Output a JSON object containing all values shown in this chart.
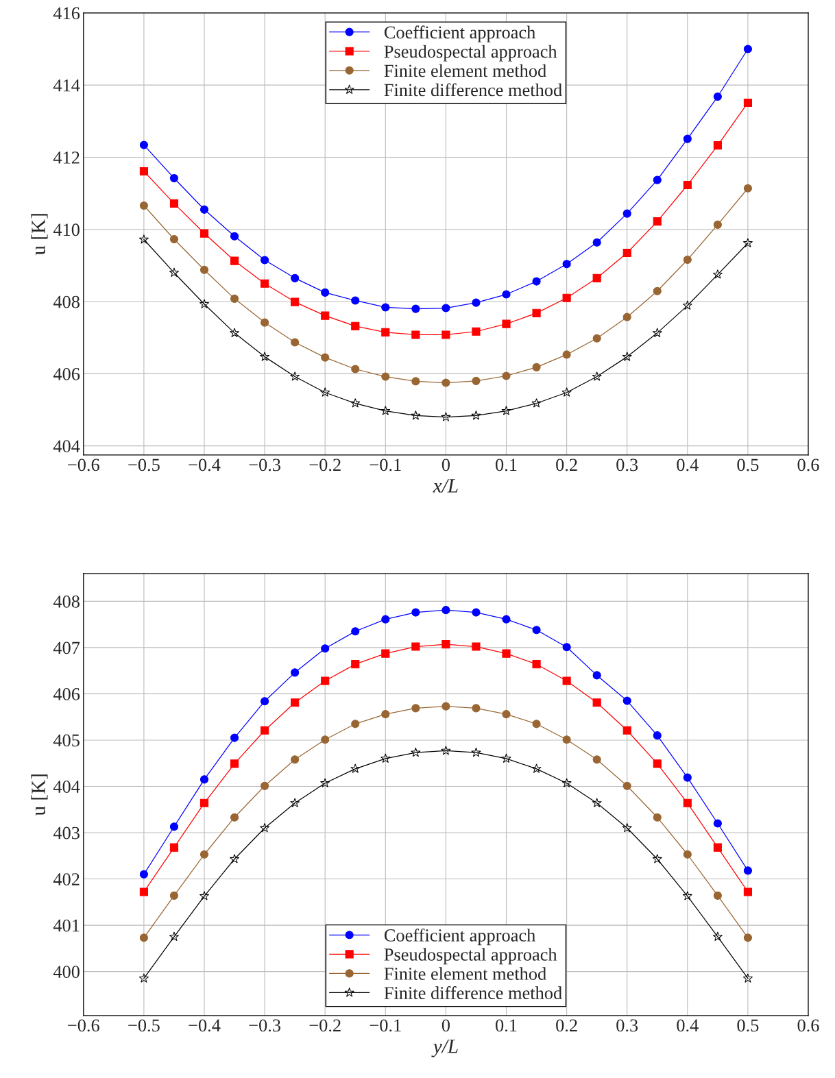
{
  "chart_data": [
    {
      "type": "line",
      "xlabel": "x/L",
      "ylabel": "u [K]",
      "grid": true,
      "legend": "top",
      "x": [
        -0.5,
        -0.45,
        -0.4,
        -0.35,
        -0.3,
        -0.25,
        -0.2,
        -0.15,
        -0.1,
        -0.05,
        0,
        0.05,
        0.1,
        0.15,
        0.2,
        0.25,
        0.3,
        0.35,
        0.4,
        0.45,
        0.5
      ],
      "xlim": [
        -0.6,
        0.6
      ],
      "xticks": [
        {
          "value": -0.6,
          "label": "−0.6"
        },
        {
          "value": -0.5,
          "label": "−0.5"
        },
        {
          "value": -0.4,
          "label": "−0.4"
        },
        {
          "value": -0.3,
          "label": "−0.3"
        },
        {
          "value": -0.2,
          "label": "−0.2"
        },
        {
          "value": -0.1,
          "label": "−0.1"
        },
        0,
        0.1,
        0.2,
        0.3,
        0.4,
        0.5,
        0.6
      ],
      "ylim": [
        403.75,
        416
      ],
      "yticks": [
        404,
        406,
        408,
        410,
        412,
        414,
        416
      ],
      "series": [
        {
          "name": "Coefficient approach",
          "color": "#0000ff",
          "marker": "circle",
          "values": [
            412.34,
            411.42,
            410.55,
            409.81,
            409.15,
            408.65,
            408.25,
            408.03,
            407.84,
            407.8,
            407.82,
            407.97,
            408.2,
            408.56,
            409.04,
            409.64,
            410.44,
            411.37,
            412.51,
            413.68,
            415.0
          ]
        },
        {
          "name": "Pseudospectal approach",
          "color": "#ff0000",
          "marker": "square",
          "values": [
            411.61,
            410.72,
            409.89,
            409.13,
            408.5,
            407.99,
            407.61,
            407.32,
            407.15,
            407.08,
            407.08,
            407.17,
            407.38,
            407.68,
            408.1,
            408.65,
            409.35,
            410.22,
            411.23,
            412.33,
            413.51
          ]
        },
        {
          "name": "Finite element method",
          "color": "#996633",
          "marker": "circle",
          "values": [
            410.66,
            409.73,
            408.88,
            408.08,
            407.42,
            406.87,
            406.45,
            406.13,
            405.92,
            405.79,
            405.75,
            405.8,
            405.94,
            406.18,
            406.53,
            406.98,
            407.57,
            408.29,
            409.16,
            410.13,
            411.14
          ]
        },
        {
          "name": "Finite difference method",
          "color": "#000000",
          "marker": "star",
          "values": [
            409.72,
            408.8,
            407.93,
            407.13,
            406.47,
            405.92,
            405.48,
            405.18,
            404.97,
            404.84,
            404.8,
            404.84,
            404.97,
            405.18,
            405.48,
            405.92,
            406.47,
            407.13,
            407.89,
            408.75,
            409.62
          ]
        }
      ]
    },
    {
      "type": "line",
      "xlabel": "y/L",
      "ylabel": "u [K]",
      "grid": true,
      "legend": "bottom",
      "x": [
        -0.5,
        -0.45,
        -0.4,
        -0.35,
        -0.3,
        -0.25,
        -0.2,
        -0.15,
        -0.1,
        -0.05,
        0,
        0.05,
        0.1,
        0.15,
        0.2,
        0.25,
        0.3,
        0.35,
        0.4,
        0.45,
        0.5
      ],
      "xlim": [
        -0.6,
        0.6
      ],
      "xticks": [
        {
          "value": -0.6,
          "label": "−0.6"
        },
        {
          "value": -0.5,
          "label": "−0.5"
        },
        {
          "value": -0.4,
          "label": "−0.4"
        },
        {
          "value": -0.3,
          "label": "−0.3"
        },
        {
          "value": -0.2,
          "label": "−0.2"
        },
        {
          "value": -0.1,
          "label": "−0.1"
        },
        0,
        0.1,
        0.2,
        0.3,
        0.4,
        0.5,
        0.6
      ],
      "ylim": [
        399.05,
        408.6
      ],
      "yticks": [
        400,
        401,
        402,
        403,
        404,
        405,
        406,
        407,
        408
      ],
      "series": [
        {
          "name": "Coefficient approach",
          "color": "#0000ff",
          "marker": "circle",
          "values": [
            402.1,
            403.13,
            404.15,
            405.05,
            405.84,
            406.46,
            406.98,
            407.35,
            407.61,
            407.76,
            407.81,
            407.76,
            407.61,
            407.38,
            407.01,
            406.4,
            405.85,
            405.1,
            404.19,
            403.2,
            402.18
          ]
        },
        {
          "name": "Pseudospectal approach",
          "color": "#ff0000",
          "marker": "square",
          "values": [
            401.72,
            402.68,
            403.64,
            404.49,
            405.21,
            405.81,
            406.28,
            406.64,
            406.87,
            407.02,
            407.07,
            407.02,
            406.87,
            406.64,
            406.28,
            405.81,
            405.21,
            404.49,
            403.64,
            402.68,
            401.72
          ]
        },
        {
          "name": "Finite element method",
          "color": "#996633",
          "marker": "circle",
          "values": [
            400.73,
            401.64,
            402.53,
            403.33,
            404.01,
            404.58,
            405.01,
            405.35,
            405.56,
            405.69,
            405.73,
            405.69,
            405.56,
            405.35,
            405.01,
            404.58,
            404.01,
            403.33,
            402.53,
            401.64,
            400.73
          ]
        },
        {
          "name": "Finite difference method",
          "color": "#000000",
          "marker": "star",
          "values": [
            399.85,
            400.75,
            401.63,
            402.43,
            403.1,
            403.64,
            404.07,
            404.38,
            404.6,
            404.73,
            404.77,
            404.73,
            404.6,
            404.38,
            404.07,
            403.64,
            403.1,
            402.43,
            401.63,
            400.75,
            399.85
          ]
        }
      ]
    }
  ]
}
